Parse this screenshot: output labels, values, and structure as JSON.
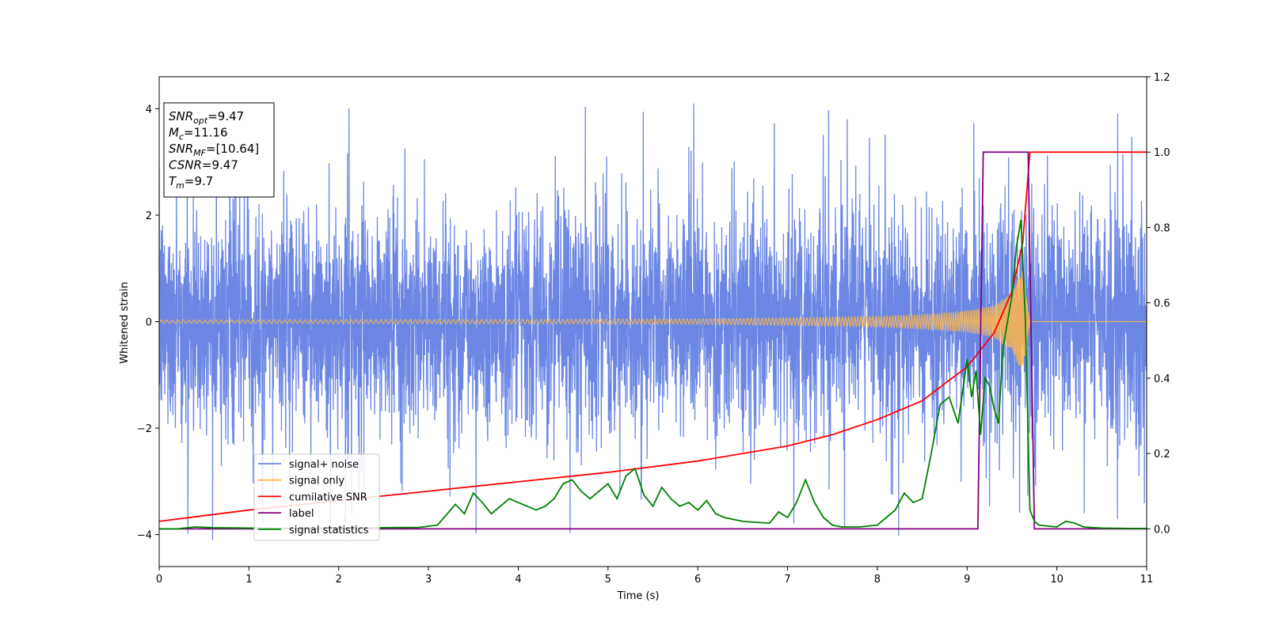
{
  "chart_data": {
    "type": "line",
    "xlabel": "Time (s)",
    "ylabel": "Whitened strain",
    "xlim": [
      0,
      11
    ],
    "ylim": [
      -4.6,
      4.6
    ],
    "y2lim": [
      -0.1,
      1.2
    ],
    "xticks": [
      0,
      1,
      2,
      3,
      4,
      5,
      6,
      7,
      8,
      9,
      10,
      11
    ],
    "yticks": [
      -4,
      -2,
      0,
      2,
      4
    ],
    "y2ticks": [
      0.0,
      0.2,
      0.4,
      0.6,
      0.8,
      1.0,
      1.2
    ],
    "grid": false,
    "legend_position": "lower-left",
    "info_box": {
      "lines": [
        {
          "key": "snr_opt",
          "sym": "SNR",
          "sub": "opt",
          "value": "=9.47"
        },
        {
          "key": "mc",
          "sym": "M",
          "sub": "c",
          "value": "=11.16"
        },
        {
          "key": "snr_mf",
          "sym": "SNR",
          "sub": "MF",
          "value": "=[10.64]"
        },
        {
          "key": "csnr",
          "sym": "CSNR",
          "sub": "",
          "value": "=9.47"
        },
        {
          "key": "tm",
          "sym": "T",
          "sub": "m",
          "value": "=9.7"
        }
      ]
    },
    "series": [
      {
        "name": "signal+ noise",
        "color": "#6b87e3",
        "axis": "left",
        "kind": "noise",
        "description_values": {
          "typical_amplitude": 1.3,
          "peak_max": 4.2,
          "peak_min": -4.1
        }
      },
      {
        "name": "signal only",
        "color": "#ffb74d",
        "axis": "left",
        "kind": "chirp",
        "envelope": {
          "t": [
            0,
            2,
            4,
            6,
            7,
            8,
            8.5,
            9,
            9.3,
            9.5,
            9.62,
            9.7,
            11
          ],
          "amp": [
            0.03,
            0.035,
            0.04,
            0.05,
            0.07,
            0.1,
            0.13,
            0.2,
            0.3,
            0.55,
            1.0,
            0.0,
            0.0
          ]
        }
      },
      {
        "name": "cumilative SNR",
        "color": "#ff0000",
        "axis": "right",
        "x": [
          0,
          1,
          2,
          3,
          4,
          5,
          6,
          7,
          7.5,
          8,
          8.5,
          9,
          9.3,
          9.5,
          9.62,
          9.7,
          11
        ],
        "y": [
          0.02,
          0.05,
          0.075,
          0.1,
          0.125,
          0.15,
          0.18,
          0.22,
          0.25,
          0.29,
          0.34,
          0.43,
          0.52,
          0.63,
          0.76,
          1.0,
          1.0
        ]
      },
      {
        "name": "label",
        "color": "#800080",
        "axis": "right",
        "x": [
          0,
          9.12,
          9.18,
          9.68,
          9.75,
          11
        ],
        "y": [
          0.0,
          0.0,
          1.0,
          1.0,
          0.0,
          0.0
        ]
      },
      {
        "name": "signal statistics",
        "color": "#008000",
        "axis": "right",
        "x": [
          0,
          0.2,
          0.4,
          0.6,
          1.0,
          1.5,
          2.0,
          2.5,
          2.9,
          3.1,
          3.3,
          3.4,
          3.5,
          3.6,
          3.7,
          3.8,
          3.9,
          4.0,
          4.1,
          4.2,
          4.3,
          4.4,
          4.5,
          4.6,
          4.7,
          4.8,
          4.9,
          5.0,
          5.1,
          5.2,
          5.3,
          5.4,
          5.5,
          5.6,
          5.7,
          5.8,
          5.9,
          6.0,
          6.1,
          6.2,
          6.3,
          6.5,
          6.8,
          6.9,
          7.0,
          7.1,
          7.2,
          7.3,
          7.4,
          7.5,
          7.6,
          7.8,
          8.0,
          8.2,
          8.3,
          8.4,
          8.5,
          8.6,
          8.7,
          8.8,
          8.9,
          9.0,
          9.05,
          9.1,
          9.15,
          9.2,
          9.25,
          9.3,
          9.35,
          9.4,
          9.45,
          9.5,
          9.55,
          9.6,
          9.65,
          9.7,
          9.75,
          9.8,
          10.0,
          10.1,
          10.2,
          10.3,
          10.5,
          10.8,
          11.0
        ],
        "y": [
          0.0,
          0.0,
          0.005,
          0.003,
          0.002,
          0.001,
          0.002,
          0.003,
          0.004,
          0.01,
          0.065,
          0.04,
          0.095,
          0.07,
          0.04,
          0.06,
          0.08,
          0.07,
          0.06,
          0.05,
          0.06,
          0.08,
          0.12,
          0.13,
          0.1,
          0.08,
          0.1,
          0.12,
          0.08,
          0.14,
          0.16,
          0.09,
          0.06,
          0.11,
          0.08,
          0.06,
          0.07,
          0.05,
          0.075,
          0.04,
          0.03,
          0.02,
          0.015,
          0.045,
          0.03,
          0.07,
          0.13,
          0.07,
          0.03,
          0.01,
          0.005,
          0.005,
          0.01,
          0.05,
          0.095,
          0.07,
          0.08,
          0.2,
          0.33,
          0.35,
          0.28,
          0.45,
          0.35,
          0.42,
          0.25,
          0.4,
          0.38,
          0.32,
          0.28,
          0.48,
          0.55,
          0.62,
          0.75,
          0.82,
          0.55,
          0.05,
          0.02,
          0.01,
          0.005,
          0.02,
          0.015,
          0.005,
          0.002,
          0.001,
          0.001
        ]
      }
    ]
  }
}
